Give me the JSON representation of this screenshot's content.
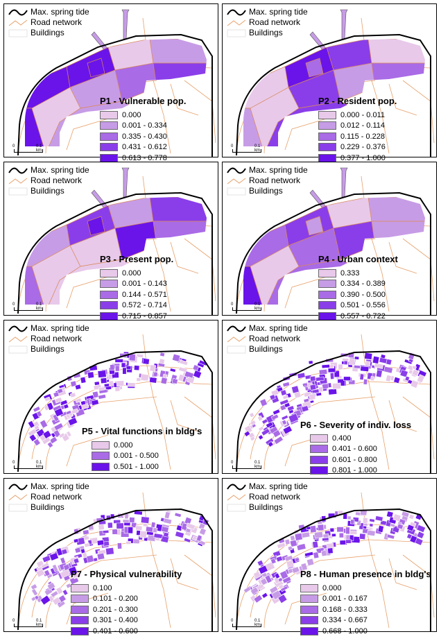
{
  "legend_common": {
    "tide": "Max. spring tide",
    "road": "Road network",
    "buildings": "Buildings"
  },
  "scale": {
    "zero": "0",
    "km": "0.1 km"
  },
  "colors": [
    "#e8c9ea",
    "#c79ce6",
    "#a96be6",
    "#8a3ee9",
    "#6a14ea"
  ],
  "panels": [
    {
      "title": "P1 - Vulnerable pop.",
      "kind": "zones",
      "classes": [
        "0.000",
        "0.001 - 0.334",
        "0.335 - 0.430",
        "0.431 - 0.612",
        "0.613 - 0.778"
      ]
    },
    {
      "title": "P2 - Resident pop.",
      "kind": "zones",
      "classes": [
        "0.000 - 0.011",
        "0.012 - 0.114",
        "0.115 - 0.228",
        "0.229 - 0.376",
        "0.377 - 1.000"
      ]
    },
    {
      "title": "P3 - Present pop.",
      "kind": "zones",
      "classes": [
        "0.000",
        "0.001 - 0.143",
        "0.144 - 0.571",
        "0.572 - 0.714",
        "0.715 - 0.857"
      ]
    },
    {
      "title": "P4 - Urban context",
      "kind": "zones",
      "classes": [
        "0.333",
        "0.334 - 0.389",
        "0.390 - 0.500",
        "0.501 - 0.556",
        "0.557 - 0.722"
      ]
    },
    {
      "title": "P5 - Vital functions in bldg's",
      "kind": "bldg",
      "classes": [
        "0.000",
        "0.001 - 0.500",
        "0.501 - 1.000"
      ]
    },
    {
      "title": "P6 - Severity of indiv. loss",
      "kind": "bldg",
      "classes": [
        "0.400",
        "0.401 - 0.600",
        "0.601 - 0.800",
        "0.801 - 1.000"
      ]
    },
    {
      "title": "P7 - Physical vulnerability",
      "kind": "bldg",
      "classes": [
        "0.100",
        "0.101 - 0.200",
        "0.201 - 0.300",
        "0.301 - 0.400",
        "0.401 - 0.600"
      ]
    },
    {
      "title": "P8 - Human presence in bldg's",
      "kind": "bldg",
      "classes": [
        "0.000",
        "0.001 - 0.167",
        "0.168 - 0.333",
        "0.334 - 0.667",
        "0.668 - 1.000"
      ]
    }
  ]
}
